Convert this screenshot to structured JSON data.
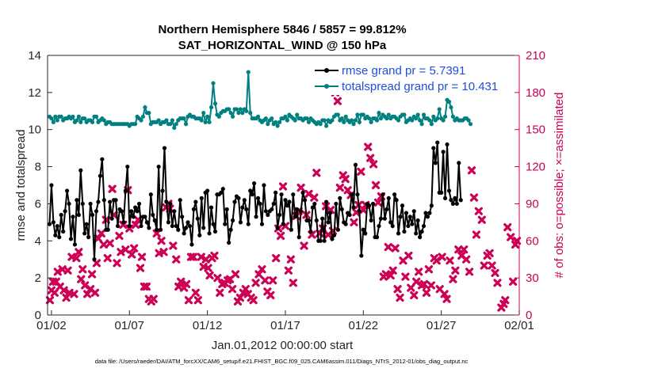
{
  "chart_data": {
    "type": "line",
    "title": "Northern Hemisphere 5846 / 5857 = 99.812%",
    "subtitle": "SAT_HORIZONTAL_WIND @ 150 hPa",
    "xlabel": "Jan.01,2012 00:00:00 start",
    "ylabel_left": "rmse and totalspread",
    "ylabel_right": "# of obs: o=possible; ×=assimilated",
    "footnote": "data file: /Users/raeder/DAI/ATM_forcXX/CAM6_setup/f.e21.FHIST_BGC.f09_025.CAM6assim.011/Diags_NTrS_2012-01/obs_diag_output.nc",
    "x_ticks": [
      "01/02",
      "01/07",
      "01/12",
      "01/17",
      "01/22",
      "01/27",
      "02/01"
    ],
    "x_tick_days": [
      1,
      6,
      11,
      16,
      21,
      26,
      31
    ],
    "xlim": [
      0.75,
      31.0
    ],
    "ylim_left": [
      0,
      14
    ],
    "y_ticks_left": [
      "0",
      "2",
      "4",
      "6",
      "8",
      "10",
      "12",
      "14"
    ],
    "ylim_right": [
      0,
      210
    ],
    "y_ticks_right": [
      "0",
      "30",
      "60",
      "90",
      "120",
      "150",
      "180",
      "210"
    ],
    "colors": {
      "rmse": "#000000",
      "totalspread": "#008080",
      "obs": "#cc0055",
      "right_axis": "#cc0055"
    },
    "series": [
      {
        "name": "rmse grand pr = 5.7391",
        "axis": "left",
        "start_day": 0.875,
        "step_days": 0.125,
        "values": [
          4.9,
          7.0,
          5.0,
          4.3,
          4.8,
          4.2,
          5.4,
          4.5,
          5.6,
          6.7,
          6.0,
          4.1,
          5.3,
          3.8,
          6.2,
          5.4,
          7.8,
          6.0,
          4.4,
          4.9,
          4.2,
          6.0,
          5.4,
          3.0,
          5.6,
          6.1,
          7.5,
          8.4,
          6.2,
          4.6,
          4.6,
          6.1,
          5.2,
          6.2,
          6.2,
          4.8,
          5.7,
          5.6,
          5.0,
          6.7,
          8.0,
          4.8,
          5.6,
          5.3,
          5.8,
          5.6,
          6.0,
          4.8,
          5.3,
          5.3,
          5.0,
          4.7,
          6.5,
          5.4,
          5.1,
          4.6,
          8.0,
          4.6,
          6.7,
          9.0,
          6.1,
          5.0,
          6.0,
          4.8,
          5.6,
          4.8,
          4.6,
          6.2,
          5.3,
          4.4,
          4.7,
          5.0,
          4.8,
          3.8,
          5.7,
          6.1,
          5.2,
          4.3,
          6.3,
          4.7,
          6.6,
          6.7,
          4.4,
          5.8,
          4.9,
          4.5,
          6.5,
          6.5,
          6.6,
          6.8,
          4.9,
          5.7,
          3.9,
          4.6,
          5.1,
          6.1,
          6.4,
          6.3,
          5.0,
          5.8,
          6.2,
          5.7,
          4.9,
          6.7,
          6.5,
          7.1,
          5.3,
          6.3,
          6.0,
          4.9,
          7.0,
          5.6,
          5.4,
          5.6,
          5.7,
          6.0,
          6.6,
          4.7,
          5.4,
          6.5,
          4.9,
          6.2,
          5.9,
          6.1,
          4.6,
          6.5,
          5.3,
          5.7,
          4.2,
          5.6,
          6.6,
          6.2,
          5.1,
          5.1,
          4.5,
          5.8,
          6.0,
          5.1,
          4.0,
          4.0,
          5.2,
          4.0,
          6.1,
          5.0,
          5.5,
          4.1,
          4.3,
          6.0,
          4.6,
          6.3,
          5.7,
          5.0,
          4.9,
          5.5,
          5.4,
          6.5,
          5.8,
          8.1,
          6.5,
          5.6,
          3.2,
          4.6,
          4.4,
          6.0,
          5.9,
          5.1,
          6.0,
          4.2,
          4.2,
          4.8,
          5.2,
          6.5,
          5.2,
          5.7,
          6.3,
          5.0,
          4.8,
          6.5,
          6.2,
          4.4,
          5.3,
          5.9,
          4.5,
          5.5,
          4.8,
          5.3,
          4.9,
          5.6,
          4.4,
          5.1,
          4.2,
          4.5,
          4.8,
          5.5,
          5.3,
          5.5,
          5.9,
          9.0,
          8.2,
          9.3,
          6.6,
          6.6,
          8.8,
          6.3,
          9.2,
          6.7,
          6.2,
          6.0,
          6.3,
          6.0,
          8.2,
          6.2
        ]
      },
      {
        "name": "totalspread grand pr = 10.431",
        "axis": "left",
        "start_day": 0.875,
        "step_days": 0.125,
        "values": [
          10.7,
          10.6,
          10.4,
          10.7,
          10.5,
          10.7,
          10.7,
          10.5,
          10.6,
          10.6,
          10.7,
          10.6,
          10.7,
          10.4,
          10.5,
          10.7,
          10.4,
          10.6,
          10.6,
          10.4,
          10.5,
          10.5,
          10.4,
          10.7,
          10.7,
          10.4,
          10.5,
          10.6,
          10.5,
          10.3,
          10.4,
          10.4,
          10.3,
          10.3,
          10.3,
          10.3,
          10.3,
          10.3,
          10.3,
          10.3,
          10.3,
          10.2,
          10.3,
          10.3,
          10.3,
          10.7,
          10.6,
          10.5,
          10.7,
          11.2,
          10.9,
          10.9,
          10.3,
          10.4,
          10.4,
          10.4,
          10.5,
          10.3,
          10.4,
          10.4,
          10.5,
          10.3,
          10.3,
          10.5,
          10.1,
          10.3,
          10.5,
          10.6,
          10.6,
          10.6,
          10.3,
          10.7,
          10.8,
          10.7,
          10.7,
          10.6,
          10.6,
          10.6,
          10.5,
          10.9,
          10.4,
          10.7,
          10.4,
          11.2,
          12.5,
          11.4,
          10.8,
          10.7,
          10.9,
          11.0,
          11.0,
          11.1,
          11.1,
          10.9,
          10.7,
          11.1,
          11.1,
          10.9,
          11.1,
          10.9,
          11.1,
          11.0,
          13.1,
          10.9,
          10.6,
          10.6,
          10.6,
          10.7,
          10.5,
          10.4,
          10.5,
          10.6,
          10.3,
          10.5,
          10.6,
          10.3,
          10.4,
          10.2,
          10.4,
          10.6,
          10.6,
          10.7,
          10.5,
          10.8,
          10.7,
          10.6,
          10.5,
          10.8,
          10.6,
          10.6,
          10.5,
          10.6,
          10.6,
          10.4,
          10.6,
          10.5,
          10.4,
          10.3,
          10.4,
          10.3,
          10.5,
          10.5,
          10.2,
          10.5,
          10.4,
          10.5,
          10.7,
          10.8,
          10.8,
          10.5,
          10.6,
          10.4,
          10.7,
          10.5,
          10.4,
          10.5,
          10.3,
          10.5,
          10.8,
          10.4,
          10.8,
          10.8,
          10.6,
          10.7,
          10.6,
          10.4,
          10.6,
          10.6,
          10.5,
          10.9,
          10.6,
          10.8,
          10.7,
          10.6,
          10.8,
          10.6,
          10.7,
          10.7,
          10.6,
          10.5,
          10.7,
          10.8,
          10.8,
          10.4,
          10.5,
          10.6,
          10.5,
          10.7,
          10.6,
          10.8,
          10.5,
          10.3,
          10.8,
          10.6,
          10.6,
          10.5,
          10.3,
          10.7,
          10.5,
          10.6,
          11.1,
          10.6,
          10.5,
          10.7,
          11.6,
          11.5,
          11.2,
          10.7,
          10.5,
          10.6,
          10.5,
          10.5,
          10.5,
          10.6,
          10.6,
          10.5,
          10.3
        ]
      },
      {
        "name": "",
        "axis": "right",
        "marker": "cross",
        "points": [
          [
            0.9,
            12
          ],
          [
            1.0,
            20
          ],
          [
            1.1,
            27
          ],
          [
            1.2,
            18
          ],
          [
            1.3,
            27
          ],
          [
            1.4,
            35
          ],
          [
            1.55,
            23
          ],
          [
            1.7,
            37
          ],
          [
            1.8,
            20
          ],
          [
            1.95,
            14
          ],
          [
            2.05,
            36
          ],
          [
            2.15,
            18
          ],
          [
            2.3,
            47
          ],
          [
            2.45,
            17
          ],
          [
            2.6,
            46
          ],
          [
            2.75,
            51
          ],
          [
            2.9,
            29
          ],
          [
            3.0,
            37
          ],
          [
            3.15,
            24
          ],
          [
            3.3,
            17
          ],
          [
            3.5,
            21
          ],
          [
            3.6,
            33
          ],
          [
            3.8,
            18
          ],
          [
            3.9,
            42
          ],
          [
            4.0,
            62
          ],
          [
            4.2,
            66
          ],
          [
            4.35,
            57
          ],
          [
            4.5,
            77
          ],
          [
            4.6,
            46
          ],
          [
            4.75,
            58
          ],
          [
            4.9,
            102
          ],
          [
            5.0,
            81
          ],
          [
            5.2,
            42
          ],
          [
            5.35,
            64
          ],
          [
            5.45,
            51
          ],
          [
            5.6,
            73
          ],
          [
            5.75,
            53
          ],
          [
            5.9,
            101
          ],
          [
            6.0,
            70
          ],
          [
            6.15,
            49
          ],
          [
            6.3,
            54
          ],
          [
            6.4,
            73
          ],
          [
            6.55,
            77
          ],
          [
            6.7,
            38
          ],
          [
            6.8,
            47
          ],
          [
            6.95,
            23
          ],
          [
            7.1,
            23
          ],
          [
            7.25,
            13
          ],
          [
            7.4,
            11
          ],
          [
            7.55,
            13
          ],
          [
            7.75,
            66
          ],
          [
            7.9,
            50
          ],
          [
            8.05,
            60
          ],
          [
            8.2,
            51
          ],
          [
            8.35,
            87
          ],
          [
            8.5,
            90
          ],
          [
            8.6,
            86
          ],
          [
            8.8,
            56
          ],
          [
            9.0,
            45
          ],
          [
            9.15,
            23
          ],
          [
            9.3,
            27
          ],
          [
            9.5,
            22
          ],
          [
            9.65,
            25
          ],
          [
            9.8,
            12
          ],
          [
            9.95,
            47
          ],
          [
            10.1,
            47
          ],
          [
            10.25,
            18
          ],
          [
            10.4,
            12
          ],
          [
            10.6,
            47
          ],
          [
            10.75,
            39
          ],
          [
            10.9,
            45
          ],
          [
            11.05,
            38
          ],
          [
            11.15,
            32
          ],
          [
            11.3,
            46
          ],
          [
            11.45,
            48
          ],
          [
            11.65,
            30
          ],
          [
            11.8,
            18
          ],
          [
            11.95,
            25
          ],
          [
            12.1,
            26
          ],
          [
            12.3,
            28
          ],
          [
            12.45,
            29
          ],
          [
            12.6,
            21
          ],
          [
            12.8,
            33
          ],
          [
            12.95,
            11
          ],
          [
            13.1,
            14
          ],
          [
            13.3,
            18
          ],
          [
            13.45,
            21
          ],
          [
            13.6,
            17
          ],
          [
            13.8,
            14
          ],
          [
            13.95,
            12
          ],
          [
            14.1,
            26
          ],
          [
            14.3,
            33
          ],
          [
            14.5,
            37
          ],
          [
            14.7,
            28
          ],
          [
            14.85,
            19
          ],
          [
            15.05,
            16
          ],
          [
            15.2,
            28
          ],
          [
            15.4,
            46
          ],
          [
            15.55,
            70
          ],
          [
            15.7,
            64
          ],
          [
            15.85,
            104
          ],
          [
            16.0,
            72
          ],
          [
            16.2,
            36
          ],
          [
            16.35,
            45
          ],
          [
            16.5,
            26
          ],
          [
            16.7,
            80
          ],
          [
            16.85,
            84
          ],
          [
            17.0,
            103
          ],
          [
            17.2,
            56
          ],
          [
            17.35,
            81
          ],
          [
            17.5,
            98
          ],
          [
            17.7,
            65
          ],
          [
            17.85,
            95
          ],
          [
            18.0,
            115
          ],
          [
            18.2,
            66
          ],
          [
            18.4,
            70
          ],
          [
            18.6,
            88
          ],
          [
            18.75,
            65
          ],
          [
            18.9,
            85
          ],
          [
            19.05,
            68
          ],
          [
            19.2,
            180
          ],
          [
            19.35,
            173
          ],
          [
            19.5,
            103
          ],
          [
            19.7,
            113
          ],
          [
            19.85,
            110
          ],
          [
            20.0,
            101
          ],
          [
            20.2,
            97
          ],
          [
            20.4,
            75
          ],
          [
            20.55,
            83
          ],
          [
            20.7,
            89
          ],
          [
            20.85,
            116
          ],
          [
            21.0,
            85
          ],
          [
            21.15,
            89
          ],
          [
            21.3,
            136
          ],
          [
            21.45,
            127
          ],
          [
            21.65,
            122
          ],
          [
            21.8,
            105
          ],
          [
            21.95,
            91
          ],
          [
            22.15,
            96
          ],
          [
            22.3,
            31
          ],
          [
            22.45,
            33
          ],
          [
            22.6,
            55
          ],
          [
            22.75,
            32
          ],
          [
            22.9,
            36
          ],
          [
            23.05,
            54
          ],
          [
            23.2,
            21
          ],
          [
            23.35,
            14
          ],
          [
            23.55,
            44
          ],
          [
            23.7,
            31
          ],
          [
            23.9,
            48
          ],
          [
            24.05,
            22
          ],
          [
            24.25,
            16
          ],
          [
            24.4,
            27
          ],
          [
            24.55,
            35
          ],
          [
            24.75,
            24
          ],
          [
            24.9,
            25
          ],
          [
            25.05,
            18
          ],
          [
            25.2,
            37
          ],
          [
            25.35,
            24
          ],
          [
            25.55,
            46
          ],
          [
            25.7,
            44
          ],
          [
            25.9,
            21
          ],
          [
            26.05,
            47
          ],
          [
            26.2,
            17
          ],
          [
            26.35,
            13
          ],
          [
            26.55,
            44
          ],
          [
            26.75,
            29
          ],
          [
            26.9,
            36
          ],
          [
            27.1,
            53
          ],
          [
            27.3,
            48
          ],
          [
            27.45,
            53
          ],
          [
            27.6,
            45
          ],
          [
            27.8,
            35
          ],
          [
            27.95,
            117
          ],
          [
            28.1,
            95
          ],
          [
            28.25,
            65
          ],
          [
            28.4,
            84
          ],
          [
            28.6,
            77
          ],
          [
            28.75,
            40
          ],
          [
            28.95,
            48
          ],
          [
            29.1,
            50
          ],
          [
            29.25,
            40
          ],
          [
            29.45,
            34
          ],
          [
            29.6,
            26
          ],
          [
            29.85,
            6
          ],
          [
            30.0,
            9
          ],
          [
            30.1,
            12
          ],
          [
            30.25,
            71
          ],
          [
            30.45,
            63
          ],
          [
            30.6,
            27
          ],
          [
            30.75,
            57
          ],
          [
            30.85,
            60
          ]
        ]
      }
    ]
  }
}
